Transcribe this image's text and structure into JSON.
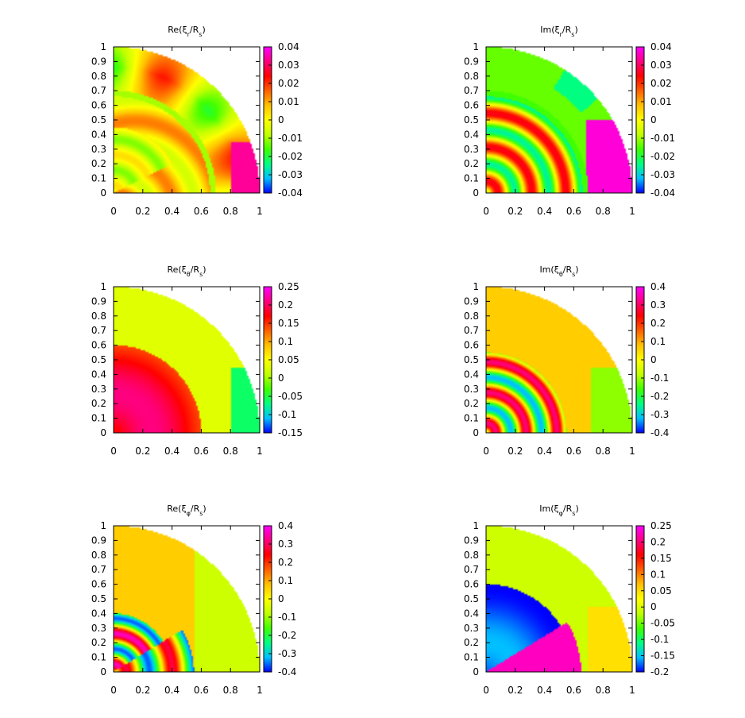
{
  "colorscale": [
    "#0000ff",
    "#00c0ff",
    "#00ff80",
    "#40ff00",
    "#c0ff00",
    "#ffff00",
    "#ffc000",
    "#ff6000",
    "#ff0000",
    "#ff0080",
    "#ff00ff"
  ],
  "chart_data": [
    {
      "type": "heatmap",
      "title": {
        "pre": "Re(ξ",
        "sub": "r",
        "post": "/R",
        "sub2": "s",
        "close": ")"
      },
      "x_ticks": [
        "0",
        "0.2",
        "0.4",
        "0.6",
        "0.8",
        "1"
      ],
      "y_ticks": [
        "0",
        "0.1",
        "0.2",
        "0.3",
        "0.4",
        "0.5",
        "0.6",
        "0.7",
        "0.8",
        "0.9",
        "1"
      ],
      "xlim": [
        0,
        1
      ],
      "ylim": [
        0,
        1
      ],
      "cb_ticks": [
        "-0.04",
        "-0.03",
        "-0.02",
        "-0.01",
        "0",
        "0.01",
        "0.02",
        "0.03",
        "0.04"
      ],
      "cb_range": [
        -0.04,
        0.04
      ],
      "pattern": "re_r"
    },
    {
      "type": "heatmap",
      "title": {
        "pre": "Im(ξ",
        "sub": "r",
        "post": "/R",
        "sub2": "s",
        "close": ")"
      },
      "x_ticks": [
        "0",
        "0.2",
        "0.4",
        "0.6",
        "0.8",
        "1"
      ],
      "y_ticks": [
        "0",
        "0.1",
        "0.2",
        "0.3",
        "0.4",
        "0.5",
        "0.6",
        "0.7",
        "0.8",
        "0.9",
        "1"
      ],
      "xlim": [
        0,
        1
      ],
      "ylim": [
        0,
        1
      ],
      "cb_ticks": [
        "-0.04",
        "-0.03",
        "-0.02",
        "-0.01",
        "0",
        "0.01",
        "0.02",
        "0.03",
        "0.04"
      ],
      "cb_range": [
        -0.04,
        0.04
      ],
      "pattern": "im_r"
    },
    {
      "type": "heatmap",
      "title": {
        "pre": "Re(ξ",
        "sub": "θ",
        "post": "/R",
        "sub2": "s",
        "close": ")"
      },
      "x_ticks": [
        "0",
        "0.2",
        "0.4",
        "0.6",
        "0.8",
        "1"
      ],
      "y_ticks": [
        "0",
        "0.1",
        "0.2",
        "0.3",
        "0.4",
        "0.5",
        "0.6",
        "0.7",
        "0.8",
        "0.9",
        "1"
      ],
      "xlim": [
        0,
        1
      ],
      "ylim": [
        0,
        1
      ],
      "cb_ticks": [
        "-0.15",
        "-0.1",
        "-0.05",
        "0",
        "0.05",
        "0.1",
        "0.15",
        "0.2",
        "0.25"
      ],
      "cb_range": [
        -0.15,
        0.25
      ],
      "pattern": "re_t"
    },
    {
      "type": "heatmap",
      "title": {
        "pre": "Im(ξ",
        "sub": "θ",
        "post": "/R",
        "sub2": "s",
        "close": ")"
      },
      "x_ticks": [
        "0",
        "0.2",
        "0.4",
        "0.6",
        "0.8",
        "1"
      ],
      "y_ticks": [
        "0",
        "0.1",
        "0.2",
        "0.3",
        "0.4",
        "0.5",
        "0.6",
        "0.7",
        "0.8",
        "0.9",
        "1"
      ],
      "xlim": [
        0,
        1
      ],
      "ylim": [
        0,
        1
      ],
      "cb_ticks": [
        "-0.4",
        "-0.3",
        "-0.2",
        "-0.1",
        "0",
        "0.1",
        "0.2",
        "0.3",
        "0.4"
      ],
      "cb_range": [
        -0.4,
        0.4
      ],
      "pattern": "im_t"
    },
    {
      "type": "heatmap",
      "title": {
        "pre": "Re(ξ",
        "sub": "φ",
        "post": "/R",
        "sub2": "s",
        "close": ")"
      },
      "x_ticks": [
        "0",
        "0.2",
        "0.4",
        "0.6",
        "0.8",
        "1"
      ],
      "y_ticks": [
        "0",
        "0.1",
        "0.2",
        "0.3",
        "0.4",
        "0.5",
        "0.6",
        "0.7",
        "0.8",
        "0.9",
        "1"
      ],
      "xlim": [
        0,
        1
      ],
      "ylim": [
        0,
        1
      ],
      "cb_ticks": [
        "-0.4",
        "-0.3",
        "-0.2",
        "-0.1",
        "0",
        "0.1",
        "0.2",
        "0.3",
        "0.4"
      ],
      "cb_range": [
        -0.4,
        0.4
      ],
      "pattern": "re_p"
    },
    {
      "type": "heatmap",
      "title": {
        "pre": "Im(ξ",
        "sub": "φ",
        "post": "/R",
        "sub2": "s",
        "close": ")"
      },
      "x_ticks": [
        "0",
        "0.2",
        "0.4",
        "0.6",
        "0.8",
        "1"
      ],
      "y_ticks": [
        "0",
        "0.1",
        "0.2",
        "0.3",
        "0.4",
        "0.5",
        "0.6",
        "0.7",
        "0.8",
        "0.9",
        "1"
      ],
      "xlim": [
        0,
        1
      ],
      "ylim": [
        0,
        1
      ],
      "cb_ticks": [
        "-0.2",
        "-0.15",
        "-0.1",
        "-0.05",
        "0",
        "0.05",
        "0.1",
        "0.15",
        "0.2",
        "0.25"
      ],
      "cb_range": [
        -0.2,
        0.25
      ],
      "pattern": "im_p"
    }
  ]
}
